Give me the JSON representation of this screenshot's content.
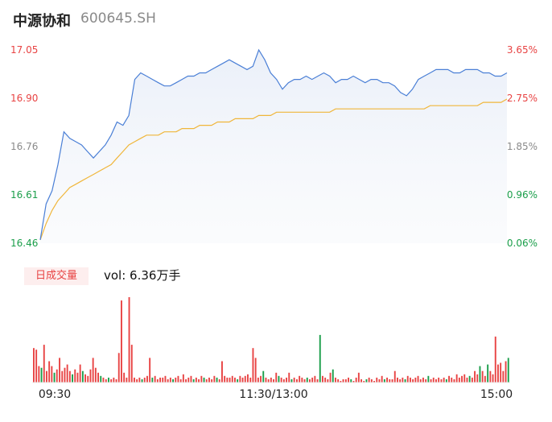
{
  "header": {
    "name": "中源协和",
    "code": "600645.SH"
  },
  "chart_data": {
    "type": "line",
    "price_axis": {
      "ticks": [
        "17.05",
        "16.90",
        "16.76",
        "16.61",
        "16.46"
      ],
      "ylim": [
        16.46,
        17.05
      ]
    },
    "pct_axis": {
      "ticks": [
        "3.65%",
        "2.75%",
        "1.85%",
        "0.96%",
        "0.06%"
      ]
    },
    "tick_colors": [
      "#e84343",
      "#e84343",
      "#8a8a8a",
      "#1a9e4a",
      "#1a9e4a"
    ],
    "time_labels": [
      "09:30",
      "11:30/13:00",
      "15:00"
    ],
    "series": [
      {
        "color": "#4a7fd6",
        "values": [
          16.47,
          16.58,
          16.62,
          16.7,
          16.8,
          16.78,
          16.77,
          16.76,
          16.74,
          16.72,
          16.74,
          16.76,
          16.79,
          16.83,
          16.82,
          16.85,
          16.96,
          16.98,
          16.97,
          16.96,
          16.95,
          16.94,
          16.94,
          16.95,
          16.96,
          16.97,
          16.97,
          16.98,
          16.98,
          16.99,
          17.0,
          17.01,
          17.02,
          17.01,
          17.0,
          16.99,
          17.0,
          17.05,
          17.02,
          16.98,
          16.96,
          16.93,
          16.95,
          16.96,
          16.96,
          16.97,
          16.96,
          16.97,
          16.98,
          16.97,
          16.95,
          16.96,
          16.96,
          16.97,
          16.96,
          16.95,
          16.96,
          16.96,
          16.95,
          16.95,
          16.94,
          16.92,
          16.91,
          16.93,
          16.96,
          16.97,
          16.98,
          16.99,
          16.99,
          16.99,
          16.98,
          16.98,
          16.99,
          16.99,
          16.99,
          16.98,
          16.98,
          16.97,
          16.97,
          16.98
        ],
        "values_color_note": ""
      },
      {
        "color": "#f0b63a",
        "values": [
          16.47,
          16.52,
          16.56,
          16.59,
          16.61,
          16.63,
          16.64,
          16.65,
          16.66,
          16.67,
          16.68,
          16.69,
          16.7,
          16.72,
          16.74,
          16.76,
          16.77,
          16.78,
          16.79,
          16.79,
          16.79,
          16.8,
          16.8,
          16.8,
          16.81,
          16.81,
          16.81,
          16.82,
          16.82,
          16.82,
          16.83,
          16.83,
          16.83,
          16.84,
          16.84,
          16.84,
          16.84,
          16.85,
          16.85,
          16.85,
          16.86,
          16.86,
          16.86,
          16.86,
          16.86,
          16.86,
          16.86,
          16.86,
          16.86,
          16.86,
          16.87,
          16.87,
          16.87,
          16.87,
          16.87,
          16.87,
          16.87,
          16.87,
          16.87,
          16.87,
          16.87,
          16.87,
          16.87,
          16.87,
          16.87,
          16.87,
          16.88,
          16.88,
          16.88,
          16.88,
          16.88,
          16.88,
          16.88,
          16.88,
          16.88,
          16.89,
          16.89,
          16.89,
          16.89,
          16.9
        ]
      }
    ],
    "volume": {
      "badge": "日成交量",
      "label": "vol: 6.36万手",
      "bars": [
        {
          "v": 42,
          "c": "r"
        },
        {
          "v": 40,
          "c": "r"
        },
        {
          "v": 20,
          "c": "r"
        },
        {
          "v": 18,
          "c": "g"
        },
        {
          "v": 46,
          "c": "r"
        },
        {
          "v": 14,
          "c": "r"
        },
        {
          "v": 26,
          "c": "r"
        },
        {
          "v": 20,
          "c": "r"
        },
        {
          "v": 12,
          "c": "g"
        },
        {
          "v": 16,
          "c": "r"
        },
        {
          "v": 30,
          "c": "r"
        },
        {
          "v": 14,
          "c": "r"
        },
        {
          "v": 18,
          "c": "r"
        },
        {
          "v": 22,
          "c": "r"
        },
        {
          "v": 14,
          "c": "r"
        },
        {
          "v": 10,
          "c": "g"
        },
        {
          "v": 16,
          "c": "r"
        },
        {
          "v": 12,
          "c": "r"
        },
        {
          "v": 22,
          "c": "r"
        },
        {
          "v": 14,
          "c": "g"
        },
        {
          "v": 10,
          "c": "r"
        },
        {
          "v": 8,
          "c": "r"
        },
        {
          "v": 16,
          "c": "r"
        },
        {
          "v": 30,
          "c": "r"
        },
        {
          "v": 18,
          "c": "r"
        },
        {
          "v": 12,
          "c": "r"
        },
        {
          "v": 8,
          "c": "g"
        },
        {
          "v": 6,
          "c": "r"
        },
        {
          "v": 4,
          "c": "r"
        },
        {
          "v": 6,
          "c": "g"
        },
        {
          "v": 4,
          "c": "r"
        },
        {
          "v": 6,
          "c": "r"
        },
        {
          "v": 4,
          "c": "r"
        },
        {
          "v": 36,
          "c": "r"
        },
        {
          "v": 100,
          "c": "r"
        },
        {
          "v": 12,
          "c": "r"
        },
        {
          "v": 6,
          "c": "r"
        },
        {
          "v": 104,
          "c": "r"
        },
        {
          "v": 46,
          "c": "r"
        },
        {
          "v": 6,
          "c": "r"
        },
        {
          "v": 4,
          "c": "r"
        },
        {
          "v": 6,
          "c": "r"
        },
        {
          "v": 4,
          "c": "g"
        },
        {
          "v": 6,
          "c": "r"
        },
        {
          "v": 8,
          "c": "r"
        },
        {
          "v": 30,
          "c": "r"
        },
        {
          "v": 6,
          "c": "g"
        },
        {
          "v": 8,
          "c": "r"
        },
        {
          "v": 4,
          "c": "r"
        },
        {
          "v": 6,
          "c": "r"
        },
        {
          "v": 6,
          "c": "r"
        },
        {
          "v": 8,
          "c": "r"
        },
        {
          "v": 4,
          "c": "r"
        },
        {
          "v": 6,
          "c": "r"
        },
        {
          "v": 4,
          "c": "g"
        },
        {
          "v": 6,
          "c": "r"
        },
        {
          "v": 8,
          "c": "r"
        },
        {
          "v": 4,
          "c": "r"
        },
        {
          "v": 10,
          "c": "r"
        },
        {
          "v": 4,
          "c": "r"
        },
        {
          "v": 6,
          "c": "r"
        },
        {
          "v": 8,
          "c": "r"
        },
        {
          "v": 4,
          "c": "g"
        },
        {
          "v": 6,
          "c": "r"
        },
        {
          "v": 4,
          "c": "r"
        },
        {
          "v": 8,
          "c": "r"
        },
        {
          "v": 6,
          "c": "g"
        },
        {
          "v": 4,
          "c": "r"
        },
        {
          "v": 6,
          "c": "r"
        },
        {
          "v": 4,
          "c": "r"
        },
        {
          "v": 8,
          "c": "r"
        },
        {
          "v": 6,
          "c": "g"
        },
        {
          "v": 4,
          "c": "r"
        },
        {
          "v": 26,
          "c": "r"
        },
        {
          "v": 8,
          "c": "r"
        },
        {
          "v": 6,
          "c": "r"
        },
        {
          "v": 6,
          "c": "r"
        },
        {
          "v": 8,
          "c": "r"
        },
        {
          "v": 6,
          "c": "r"
        },
        {
          "v": 4,
          "c": "g"
        },
        {
          "v": 8,
          "c": "r"
        },
        {
          "v": 6,
          "c": "r"
        },
        {
          "v": 8,
          "c": "r"
        },
        {
          "v": 10,
          "c": "r"
        },
        {
          "v": 6,
          "c": "r"
        },
        {
          "v": 42,
          "c": "r"
        },
        {
          "v": 30,
          "c": "r"
        },
        {
          "v": 6,
          "c": "r"
        },
        {
          "v": 8,
          "c": "r"
        },
        {
          "v": 14,
          "c": "g"
        },
        {
          "v": 6,
          "c": "r"
        },
        {
          "v": 4,
          "c": "r"
        },
        {
          "v": 6,
          "c": "r"
        },
        {
          "v": 4,
          "c": "r"
        },
        {
          "v": 12,
          "c": "r"
        },
        {
          "v": 8,
          "c": "g"
        },
        {
          "v": 6,
          "c": "r"
        },
        {
          "v": 4,
          "c": "r"
        },
        {
          "v": 6,
          "c": "r"
        },
        {
          "v": 12,
          "c": "r"
        },
        {
          "v": 4,
          "c": "g"
        },
        {
          "v": 6,
          "c": "r"
        },
        {
          "v": 4,
          "c": "r"
        },
        {
          "v": 8,
          "c": "r"
        },
        {
          "v": 6,
          "c": "r"
        },
        {
          "v": 4,
          "c": "r"
        },
        {
          "v": 6,
          "c": "g"
        },
        {
          "v": 4,
          "c": "r"
        },
        {
          "v": 6,
          "c": "r"
        },
        {
          "v": 8,
          "c": "r"
        },
        {
          "v": 4,
          "c": "r"
        },
        {
          "v": 58,
          "c": "g"
        },
        {
          "v": 8,
          "c": "r"
        },
        {
          "v": 6,
          "c": "r"
        },
        {
          "v": 4,
          "c": "r"
        },
        {
          "v": 12,
          "c": "r"
        },
        {
          "v": 16,
          "c": "g"
        },
        {
          "v": 6,
          "c": "r"
        },
        {
          "v": 4,
          "c": "r"
        },
        {
          "v": 2,
          "c": "r"
        },
        {
          "v": 4,
          "c": "r"
        },
        {
          "v": 4,
          "c": "r"
        },
        {
          "v": 6,
          "c": "r"
        },
        {
          "v": 4,
          "c": "g"
        },
        {
          "v": 2,
          "c": "r"
        },
        {
          "v": 6,
          "c": "r"
        },
        {
          "v": 12,
          "c": "r"
        },
        {
          "v": 4,
          "c": "r"
        },
        {
          "v": 2,
          "c": "r"
        },
        {
          "v": 4,
          "c": "g"
        },
        {
          "v": 6,
          "c": "r"
        },
        {
          "v": 4,
          "c": "r"
        },
        {
          "v": 2,
          "c": "r"
        },
        {
          "v": 6,
          "c": "r"
        },
        {
          "v": 4,
          "c": "r"
        },
        {
          "v": 8,
          "c": "r"
        },
        {
          "v": 4,
          "c": "g"
        },
        {
          "v": 6,
          "c": "r"
        },
        {
          "v": 4,
          "c": "r"
        },
        {
          "v": 4,
          "c": "r"
        },
        {
          "v": 14,
          "c": "r"
        },
        {
          "v": 6,
          "c": "r"
        },
        {
          "v": 4,
          "c": "r"
        },
        {
          "v": 6,
          "c": "r"
        },
        {
          "v": 4,
          "c": "g"
        },
        {
          "v": 8,
          "c": "r"
        },
        {
          "v": 6,
          "c": "r"
        },
        {
          "v": 4,
          "c": "r"
        },
        {
          "v": 6,
          "c": "r"
        },
        {
          "v": 8,
          "c": "r"
        },
        {
          "v": 4,
          "c": "r"
        },
        {
          "v": 6,
          "c": "r"
        },
        {
          "v": 4,
          "c": "r"
        },
        {
          "v": 8,
          "c": "g"
        },
        {
          "v": 4,
          "c": "r"
        },
        {
          "v": 6,
          "c": "r"
        },
        {
          "v": 4,
          "c": "r"
        },
        {
          "v": 6,
          "c": "r"
        },
        {
          "v": 4,
          "c": "r"
        },
        {
          "v": 6,
          "c": "r"
        },
        {
          "v": 4,
          "c": "g"
        },
        {
          "v": 8,
          "c": "r"
        },
        {
          "v": 6,
          "c": "r"
        },
        {
          "v": 4,
          "c": "r"
        },
        {
          "v": 10,
          "c": "r"
        },
        {
          "v": 6,
          "c": "r"
        },
        {
          "v": 8,
          "c": "r"
        },
        {
          "v": 10,
          "c": "r"
        },
        {
          "v": 6,
          "c": "r"
        },
        {
          "v": 8,
          "c": "g"
        },
        {
          "v": 6,
          "c": "r"
        },
        {
          "v": 14,
          "c": "r"
        },
        {
          "v": 10,
          "c": "r"
        },
        {
          "v": 20,
          "c": "g"
        },
        {
          "v": 14,
          "c": "r"
        },
        {
          "v": 8,
          "c": "r"
        },
        {
          "v": 22,
          "c": "g"
        },
        {
          "v": 14,
          "c": "r"
        },
        {
          "v": 10,
          "c": "r"
        },
        {
          "v": 56,
          "c": "r"
        },
        {
          "v": 22,
          "c": "r"
        },
        {
          "v": 24,
          "c": "r"
        },
        {
          "v": 14,
          "c": "r"
        },
        {
          "v": 26,
          "c": "r"
        },
        {
          "v": 30,
          "c": "g"
        }
      ]
    }
  },
  "colors": {
    "up": "#e84343",
    "down": "#1a9e4a",
    "price_line": "#4a7fd6",
    "avg_line": "#f0b63a"
  }
}
